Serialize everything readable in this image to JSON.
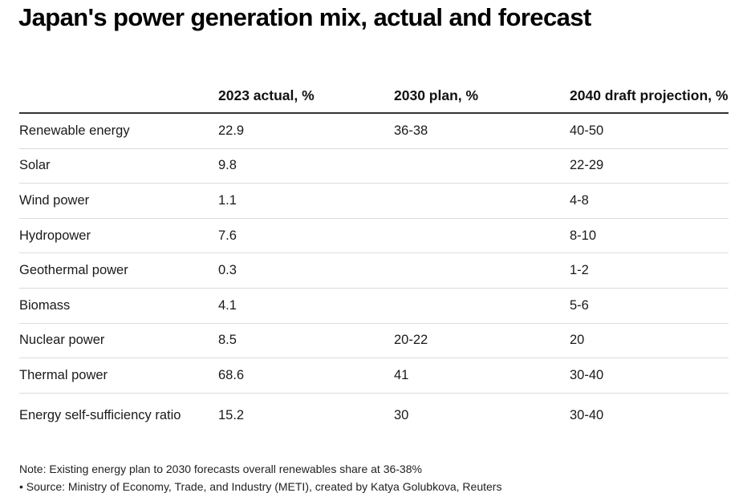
{
  "title": "Japan's power generation mix, actual and forecast",
  "colors": {
    "text": "#111111",
    "header_rule": "#333333",
    "row_rule": "#dcdcdc",
    "background": "#ffffff"
  },
  "table": {
    "columns": [
      "",
      "2023 actual, %",
      "2030 plan, %",
      "2040 draft projection, %"
    ],
    "rows": [
      [
        "Renewable energy",
        "22.9",
        "36-38",
        "40-50"
      ],
      [
        "Solar",
        "9.8",
        "",
        "22-29"
      ],
      [
        "Wind power",
        "1.1",
        "",
        "4-8"
      ],
      [
        "Hydropower",
        "7.6",
        "",
        "8-10"
      ],
      [
        "Geothermal power",
        "0.3",
        "",
        "1-2"
      ],
      [
        "Biomass",
        "4.1",
        "",
        "5-6"
      ],
      [
        "Nuclear power",
        "8.5",
        "20-22",
        "20"
      ],
      [
        "Thermal power",
        "68.6",
        "41",
        "30-40"
      ],
      [
        "Energy self-sufficiency ratio",
        "15.2",
        "30",
        "30-40"
      ]
    ]
  },
  "footer": {
    "note": "Note: Existing energy plan to 2030 forecasts overall renewables share at 36-38%",
    "source": "• Source: Ministry of Economy, Trade, and Industry (METI), created by Katya Golubkova, Reuters"
  },
  "chart_data": {
    "type": "table",
    "title": "Japan's power generation mix, actual and forecast",
    "columns": [
      "",
      "2023 actual, %",
      "2030 plan, %",
      "2040 draft projection, %"
    ],
    "rows": [
      [
        "Renewable energy",
        "22.9",
        "36-38",
        "40-50"
      ],
      [
        "Solar",
        "9.8",
        "",
        "22-29"
      ],
      [
        "Wind power",
        "1.1",
        "",
        "4-8"
      ],
      [
        "Hydropower",
        "7.6",
        "",
        "8-10"
      ],
      [
        "Geothermal power",
        "0.3",
        "",
        "1-2"
      ],
      [
        "Biomass",
        "4.1",
        "",
        "5-6"
      ],
      [
        "Nuclear power",
        "8.5",
        "20-22",
        "20"
      ],
      [
        "Thermal power",
        "68.6",
        "41",
        "30-40"
      ],
      [
        "Energy self-sufficiency ratio",
        "15.2",
        "30",
        "30-40"
      ]
    ]
  }
}
